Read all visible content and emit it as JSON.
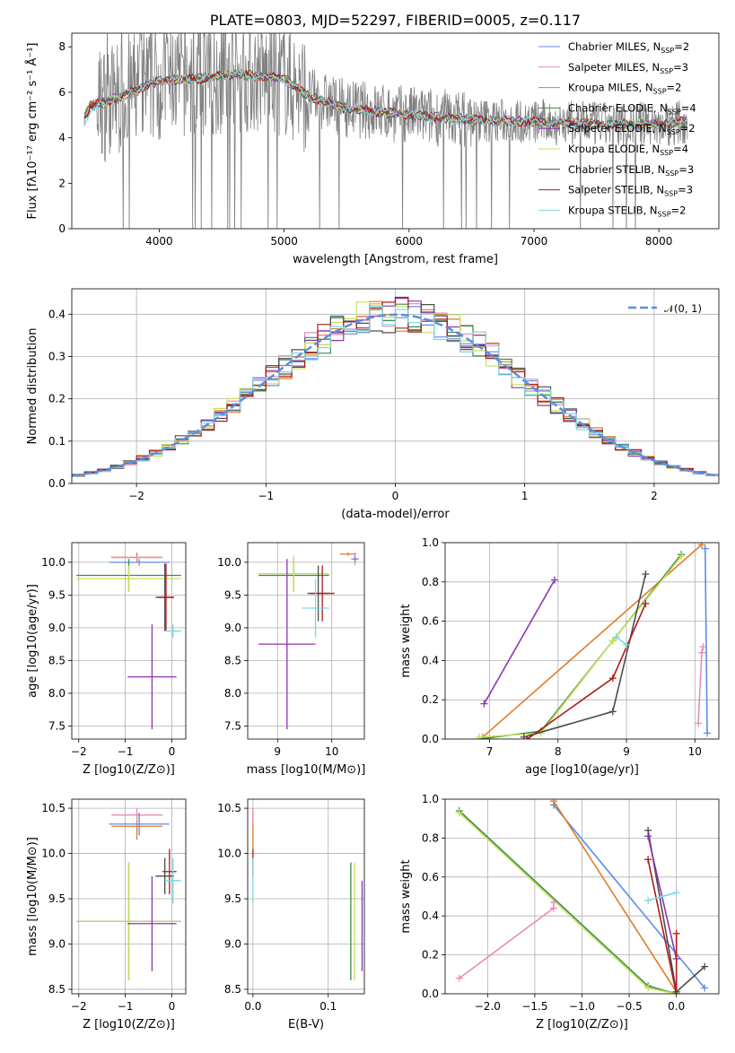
{
  "chart_data": [
    {
      "id": "spectrum",
      "type": "line",
      "title": "PLATE=0803, MJD=52297, FIBERID=0005, z=0.117",
      "xlabel": "wavelength [Angstrom, rest frame]",
      "ylabel": "Flux [fλ10⁻¹⁷ erg cm⁻² s⁻¹ Å⁻¹]",
      "xlim": [
        3300,
        8480
      ],
      "ylim": [
        0,
        8.6
      ],
      "xticks": [
        4000,
        5000,
        6000,
        7000,
        8000
      ],
      "yticks": [
        0,
        2,
        4,
        6,
        8
      ],
      "grid": false,
      "legend_position": "top-right",
      "series": [
        {
          "name": "Chabrier MILES, N_SSP=2",
          "color": "#5b8ee6"
        },
        {
          "name": "Salpeter MILES, N_SSP=3",
          "color": "#e88bbb"
        },
        {
          "name": "Kroupa MILES, N_SSP=2",
          "color": "#e07b2a"
        },
        {
          "name": "Chabrier ELODIE, N_SSP=4",
          "color": "#3d8a4f"
        },
        {
          "name": "Salpeter ELODIE, N_SSP=2",
          "color": "#8e35b0"
        },
        {
          "name": "Kroupa ELODIE, N_SSP=4",
          "color": "#c8e05a"
        },
        {
          "name": "Chabrier STELIB, N_SSP=3",
          "color": "#4d4d4d"
        },
        {
          "name": "Salpeter STELIB, N_SSP=3",
          "color": "#b01a1a"
        },
        {
          "name": "Kroupa STELIB, N_SSP=2",
          "color": "#7fd6e0"
        }
      ],
      "continuum_shape": [
        [
          3400,
          4.9
        ],
        [
          3450,
          5.4
        ],
        [
          3600,
          5.6
        ],
        [
          3800,
          6.1
        ],
        [
          4000,
          6.5
        ],
        [
          4300,
          6.6
        ],
        [
          4600,
          6.8
        ],
        [
          5000,
          6.6
        ],
        [
          5200,
          5.8
        ],
        [
          5500,
          5.3
        ],
        [
          6000,
          5.0
        ],
        [
          6500,
          4.8
        ],
        [
          7000,
          4.7
        ],
        [
          7500,
          4.6
        ],
        [
          8000,
          4.6
        ],
        [
          8200,
          4.7
        ]
      ]
    },
    {
      "id": "residuals",
      "type": "line",
      "xlabel": "(data-model)/error",
      "ylabel": "Normed distribution",
      "xlim": [
        -2.5,
        2.5
      ],
      "ylim": [
        0,
        0.46
      ],
      "xticks": [
        -2,
        -1,
        0,
        1,
        2
      ],
      "yticks": [
        0.0,
        0.1,
        0.2,
        0.3,
        0.4
      ],
      "grid": true,
      "legend_position": "top-right",
      "legend_label": "𝒩(0, 1)",
      "normal_color": "#5b8ee6"
    },
    {
      "id": "age-vs-Z",
      "type": "scatter",
      "xlabel": "Z [log10(Z/Z⊙)]",
      "ylabel": "age  [log10(age/yr)]",
      "xlim": [
        -2.15,
        0.3
      ],
      "ylim": [
        7.3,
        10.3
      ],
      "xticks": [
        -2,
        -1,
        0
      ],
      "yticks": [
        7.5,
        8.0,
        8.5,
        9.0,
        9.5,
        10.0
      ],
      "crosses": [
        {
          "c": "#e07b2a",
          "x": [
            -1.3,
            -0.2
          ],
          "y": [
            10.0,
            10.15
          ]
        },
        {
          "c": "#e88bbb",
          "x": [
            -1.3,
            -0.2
          ],
          "y": [
            10.05,
            10.1
          ]
        },
        {
          "c": "#5b8ee6",
          "x": [
            -1.35,
            -0.05
          ],
          "y": [
            9.95,
            10.05
          ]
        },
        {
          "c": "#3d8a4f",
          "x": [
            -2.05,
            0.2
          ],
          "y": [
            9.55,
            10.05
          ]
        },
        {
          "c": "#c8e05a",
          "x": [
            -2.05,
            0.2
          ],
          "y": [
            9.55,
            9.95
          ]
        },
        {
          "c": "#4d4d4d",
          "x": [
            -0.35,
            0.05
          ],
          "y": [
            8.95,
            9.98
          ]
        },
        {
          "c": "#b01a1a",
          "x": [
            -0.3,
            0.05
          ],
          "y": [
            8.95,
            9.98
          ]
        },
        {
          "c": "#7fd6e0",
          "x": [
            -0.15,
            0.2
          ],
          "y": [
            8.85,
            9.05
          ]
        },
        {
          "c": "#8e35b0",
          "x": [
            -0.95,
            0.1
          ],
          "y": [
            7.45,
            9.05
          ]
        }
      ]
    },
    {
      "id": "age-vs-mass",
      "type": "scatter",
      "xlabel": "mass [log10(M/M⊙)]",
      "ylabel": "",
      "xlim": [
        8.45,
        10.6
      ],
      "ylim": [
        7.3,
        10.3
      ],
      "xticks": [
        9,
        10
      ],
      "yticks": [
        7.5,
        8.0,
        8.5,
        9.0,
        9.5,
        10.0
      ],
      "crosses": [
        {
          "c": "#e07b2a",
          "x": [
            10.15,
            10.45
          ],
          "y": [
            10.1,
            10.15
          ]
        },
        {
          "c": "#e88bbb",
          "x": [
            10.35,
            10.5
          ],
          "y": [
            9.95,
            10.15
          ]
        },
        {
          "c": "#5b8ee6",
          "x": [
            10.38,
            10.48
          ],
          "y": [
            10.0,
            10.1
          ]
        },
        {
          "c": "#3d8a4f",
          "x": [
            8.65,
            9.95
          ],
          "y": [
            9.55,
            10.05
          ]
        },
        {
          "c": "#c8e05a",
          "x": [
            8.65,
            9.95
          ],
          "y": [
            9.55,
            10.1
          ]
        },
        {
          "c": "#4d4d4d",
          "x": [
            9.55,
            9.95
          ],
          "y": [
            9.1,
            9.95
          ]
        },
        {
          "c": "#b01a1a",
          "x": [
            9.6,
            10.05
          ],
          "y": [
            9.1,
            9.95
          ]
        },
        {
          "c": "#7fd6e0",
          "x": [
            9.45,
            9.95
          ],
          "y": [
            8.85,
            9.75
          ]
        },
        {
          "c": "#8e35b0",
          "x": [
            8.65,
            9.7
          ],
          "y": [
            7.45,
            10.05
          ]
        }
      ]
    },
    {
      "id": "massweight-vs-age",
      "type": "line",
      "xlabel": "age  [log10(age/yr)]",
      "ylabel": "mass weight",
      "xlim": [
        6.35,
        10.35
      ],
      "ylim": [
        0,
        1.0
      ],
      "xticks": [
        7,
        8,
        9,
        10
      ],
      "yticks": [
        0.0,
        0.2,
        0.4,
        0.6,
        0.8,
        1.0
      ],
      "grid": true,
      "series": [
        {
          "c": "#8e35b0",
          "x": [
            6.92,
            7.95
          ],
          "y": [
            0.18,
            0.81
          ]
        },
        {
          "c": "#e07b2a",
          "x": [
            6.9,
            10.1
          ],
          "y": [
            0.01,
            0.99
          ]
        },
        {
          "c": "#3d8a4f",
          "x": [
            6.85,
            7.75,
            8.8,
            9.8
          ],
          "y": [
            0.0,
            0.04,
            0.5,
            0.94
          ]
        },
        {
          "c": "#c8e05a",
          "x": [
            6.85,
            7.75,
            8.8,
            9.8
          ],
          "y": [
            0.01,
            0.03,
            0.5,
            0.93
          ]
        },
        {
          "c": "#4d4d4d",
          "x": [
            7.5,
            8.8,
            9.28
          ],
          "y": [
            0.01,
            0.14,
            0.84
          ]
        },
        {
          "c": "#b01a1a",
          "x": [
            7.55,
            8.8,
            9.28
          ],
          "y": [
            0.0,
            0.31,
            0.69
          ]
        },
        {
          "c": "#7fd6e0",
          "x": [
            8.85,
            9.0
          ],
          "y": [
            0.52,
            0.48
          ]
        },
        {
          "c": "#e88bbb",
          "x": [
            10.05,
            10.1,
            10.12
          ],
          "y": [
            0.08,
            0.44,
            0.47
          ]
        },
        {
          "c": "#5b8ee6",
          "x": [
            10.15,
            10.18
          ],
          "y": [
            0.97,
            0.03
          ]
        }
      ]
    },
    {
      "id": "mass-vs-Z",
      "type": "scatter",
      "xlabel": "Z [log10(Z/Z⊙)]",
      "ylabel": "mass [log10(M/M⊙)]",
      "xlim": [
        -2.15,
        0.3
      ],
      "ylim": [
        8.45,
        10.6
      ],
      "xticks": [
        -2,
        -1,
        0
      ],
      "yticks": [
        8.5,
        9.0,
        9.5,
        10.0,
        10.5
      ],
      "crosses": [
        {
          "c": "#e07b2a",
          "x": [
            -1.3,
            -0.2
          ],
          "y": [
            10.15,
            10.45
          ]
        },
        {
          "c": "#e88bbb",
          "x": [
            -1.3,
            -0.2
          ],
          "y": [
            10.35,
            10.5
          ]
        },
        {
          "c": "#5b8ee6",
          "x": [
            -1.35,
            -0.05
          ],
          "y": [
            10.2,
            10.45
          ]
        },
        {
          "c": "#3d8a4f",
          "x": [
            -2.05,
            0.2
          ],
          "y": [
            8.6,
            9.9
          ]
        },
        {
          "c": "#c8e05a",
          "x": [
            -2.05,
            0.2
          ],
          "y": [
            8.6,
            9.9
          ]
        },
        {
          "c": "#4d4d4d",
          "x": [
            -0.35,
            0.05
          ],
          "y": [
            9.55,
            9.95
          ]
        },
        {
          "c": "#b01a1a",
          "x": [
            -0.2,
            0.1
          ],
          "y": [
            9.55,
            10.05
          ]
        },
        {
          "c": "#7fd6e0",
          "x": [
            -0.15,
            0.2
          ],
          "y": [
            9.45,
            9.95
          ]
        },
        {
          "c": "#8e35b0",
          "x": [
            -0.95,
            0.1
          ],
          "y": [
            8.7,
            9.75
          ]
        }
      ]
    },
    {
      "id": "mass-vs-EBV",
      "type": "scatter",
      "xlabel": "E(B-V)",
      "ylabel": "",
      "xlim": [
        -0.007,
        0.148
      ],
      "ylim": [
        8.45,
        10.6
      ],
      "xticks": [
        0.0,
        0.1
      ],
      "yticks": [
        8.5,
        9.0,
        9.5,
        10.0,
        10.5
      ],
      "crosses": [
        {
          "c": "#e07b2a",
          "x": [
            0.0,
            0.0
          ],
          "y": [
            10.05,
            10.45
          ]
        },
        {
          "c": "#e88bbb",
          "x": [
            0.0,
            0.0
          ],
          "y": [
            10.35,
            10.5
          ]
        },
        {
          "c": "#b01a1a",
          "x": [
            0.0,
            0.0
          ],
          "y": [
            9.75,
            10.05
          ]
        },
        {
          "c": "#7fd6e0",
          "x": [
            0.0,
            0.0
          ],
          "y": [
            9.45,
            9.95
          ]
        },
        {
          "c": "#3d8a4f",
          "x": [
            0.13,
            0.13
          ],
          "y": [
            8.6,
            9.9
          ]
        },
        {
          "c": "#c8e05a",
          "x": [
            0.135,
            0.135
          ],
          "y": [
            8.6,
            9.9
          ]
        },
        {
          "c": "#8e35b0",
          "x": [
            0.145,
            0.145
          ],
          "y": [
            8.7,
            9.7
          ]
        }
      ]
    },
    {
      "id": "massweight-vs-Z",
      "type": "line",
      "xlabel": "Z [log10(Z/Z⊙)]",
      "ylabel": "mass weight",
      "xlim": [
        -2.45,
        0.45
      ],
      "ylim": [
        0,
        1.0
      ],
      "xticks": [
        -2.0,
        -1.5,
        -1.0,
        -0.5,
        0.0
      ],
      "yticks": [
        0.0,
        0.2,
        0.4,
        0.6,
        0.8,
        1.0
      ],
      "grid": true,
      "series": [
        {
          "c": "#5b8ee6",
          "x": [
            -1.3,
            0.3
          ],
          "y": [
            0.97,
            0.03
          ]
        },
        {
          "c": "#e07b2a",
          "x": [
            -1.3,
            0.0
          ],
          "y": [
            0.99,
            0.01
          ]
        },
        {
          "c": "#3d8a4f",
          "x": [
            -2.3,
            -0.3,
            0.0
          ],
          "y": [
            0.94,
            0.04,
            0.0
          ]
        },
        {
          "c": "#c8e05a",
          "x": [
            -2.3,
            -0.3,
            0.0
          ],
          "y": [
            0.93,
            0.03,
            0.0
          ]
        },
        {
          "c": "#4d4d4d",
          "x": [
            -0.3,
            0.0,
            0.3
          ],
          "y": [
            0.84,
            0.01,
            0.14
          ]
        },
        {
          "c": "#8e35b0",
          "x": [
            -0.3,
            0.0
          ],
          "y": [
            0.81,
            0.18
          ]
        },
        {
          "c": "#b01a1a",
          "x": [
            -0.3,
            0.0,
            0.0
          ],
          "y": [
            0.69,
            0.0,
            0.31
          ]
        },
        {
          "c": "#7fd6e0",
          "x": [
            -0.3,
            0.0
          ],
          "y": [
            0.48,
            0.52
          ]
        },
        {
          "c": "#e88bbb",
          "x": [
            -2.3,
            -1.3,
            -1.3
          ],
          "y": [
            0.08,
            0.44,
            0.47
          ]
        }
      ]
    }
  ]
}
